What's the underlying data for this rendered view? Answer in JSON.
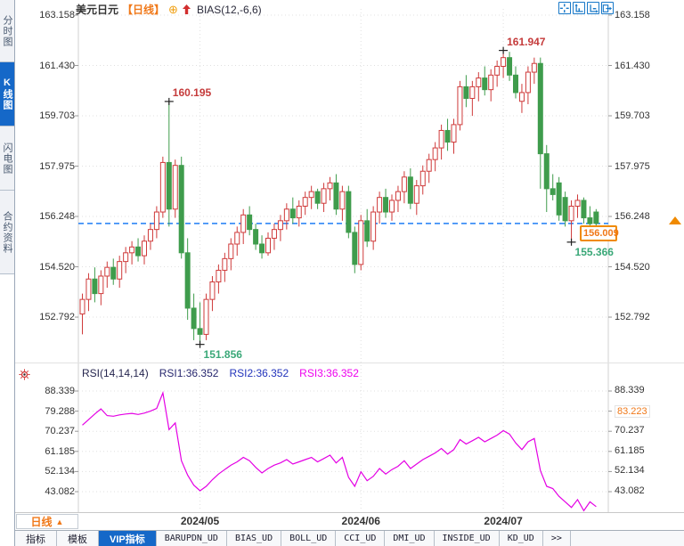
{
  "header": {
    "symbol": "美元日元",
    "period_tag": "【日线】",
    "plus_icon": "⊕",
    "indicator": "BIAS(12,-6,6)"
  },
  "toolbar_icons": [
    {
      "name": "pan-crosshair-icon"
    },
    {
      "name": "zoom-y-axis-icon"
    },
    {
      "name": "zoom-x-axis-icon"
    },
    {
      "name": "pop-out-icon"
    }
  ],
  "sidebar": {
    "items": [
      {
        "label": "分时图",
        "active": false
      },
      {
        "label": "K线图",
        "active": true
      },
      {
        "label": "闪电图",
        "active": false
      },
      {
        "label": "合约资料",
        "active": false
      }
    ]
  },
  "price_panel": {
    "axis_values": [
      "163.158",
      "161.430",
      "159.703",
      "157.975",
      "156.248",
      "154.520",
      "152.792"
    ],
    "current_price_label": "156.009"
  },
  "rsi_panel": {
    "title": "RSI(14,14,14)",
    "rsi1_label": "RSI1:36.352",
    "rsi2_label": "RSI2:36.352",
    "rsi3_label": "RSI3:36.352",
    "axis_left": [
      "88.339",
      "79.288",
      "70.237",
      "61.185",
      "52.134",
      "43.082"
    ],
    "axis_right": [
      {
        "text": "88.339",
        "highlight": false
      },
      {
        "text": "83.223",
        "highlight": true
      },
      {
        "text": "70.237",
        "highlight": false
      },
      {
        "text": "61.185",
        "highlight": false
      },
      {
        "text": "52.134",
        "highlight": false
      },
      {
        "text": "43.082",
        "highlight": false
      }
    ]
  },
  "xaxis": {
    "period_label": "日线",
    "period_arrow": "▲"
  },
  "tabbar": {
    "tabs": [
      {
        "label": "指标",
        "active": false,
        "mono": false
      },
      {
        "label": "模板",
        "active": false,
        "mono": false
      },
      {
        "label": "VIP指标",
        "active": true,
        "mono": false
      },
      {
        "label": "BARUPDN_UD",
        "active": false,
        "mono": true
      },
      {
        "label": "BIAS_UD",
        "active": false,
        "mono": true
      },
      {
        "label": "BOLL_UD",
        "active": false,
        "mono": true
      },
      {
        "label": "CCI_UD",
        "active": false,
        "mono": true
      },
      {
        "label": "DMI_UD",
        "active": false,
        "mono": true
      },
      {
        "label": "INSIDE_UD",
        "active": false,
        "mono": true
      },
      {
        "label": "KD_UD",
        "active": false,
        "mono": true
      },
      {
        "label": "&gt;&gt;",
        "plain": ">>",
        "active": false,
        "mono": true
      }
    ]
  },
  "colors": {
    "up": "#cf3a3a",
    "down": "#3f9c4c",
    "rsi_line": "#e400e4",
    "dashed_line": "#1f7df5",
    "grid": "#e0e0e0",
    "annotation_high": "#c53b3b",
    "annotation_low": "#3aa878",
    "accent_orange": "#f07818",
    "accent_blue": "#1568c8",
    "cross": "#222222"
  },
  "chart_data": [
    {
      "type": "candlestick",
      "title": "美元日元 日线 (USD/JPY daily)",
      "y_ticks": [
        163.158,
        161.43,
        159.703,
        157.975,
        156.248,
        154.52,
        152.792
      ],
      "x_ticks": [
        {
          "label": "2024/05",
          "index": 19
        },
        {
          "label": "2024/06",
          "index": 45
        },
        {
          "label": "2024/07",
          "index": 68
        }
      ],
      "current_price": 156.009,
      "annotations": [
        {
          "text": "160.195",
          "price": 160.195,
          "index": 14,
          "side": "high"
        },
        {
          "text": "161.947",
          "price": 161.947,
          "index": 68,
          "side": "high"
        },
        {
          "text": "151.856",
          "price": 151.856,
          "index": 19,
          "side": "low"
        },
        {
          "text": "155.366",
          "price": 155.366,
          "index": 79,
          "side": "low"
        }
      ],
      "ohlc": [
        [
          152.9,
          153.6,
          152.2,
          153.4
        ],
        [
          153.4,
          154.3,
          153.0,
          154.1
        ],
        [
          154.1,
          154.5,
          153.3,
          153.6
        ],
        [
          153.6,
          154.4,
          153.2,
          154.2
        ],
        [
          154.2,
          154.7,
          153.8,
          154.5
        ],
        [
          154.5,
          154.8,
          153.9,
          154.1
        ],
        [
          154.1,
          154.9,
          153.8,
          154.7
        ],
        [
          154.7,
          155.2,
          154.3,
          155.0
        ],
        [
          155.0,
          155.4,
          154.6,
          155.2
        ],
        [
          155.2,
          155.5,
          154.7,
          154.9
        ],
        [
          154.9,
          155.6,
          154.6,
          155.4
        ],
        [
          155.4,
          156.0,
          155.1,
          155.8
        ],
        [
          155.8,
          156.6,
          155.5,
          156.4
        ],
        [
          156.4,
          158.3,
          156.2,
          158.1
        ],
        [
          158.1,
          160.195,
          155.9,
          156.5
        ],
        [
          156.5,
          158.2,
          156.2,
          158.0
        ],
        [
          158.0,
          158.3,
          154.8,
          155.0
        ],
        [
          155.0,
          155.5,
          152.7,
          153.1
        ],
        [
          153.1,
          153.6,
          152.0,
          152.4
        ],
        [
          152.4,
          153.3,
          151.856,
          152.2
        ],
        [
          152.2,
          153.6,
          152.0,
          153.4
        ],
        [
          153.4,
          154.2,
          153.0,
          154.0
        ],
        [
          154.0,
          154.6,
          153.6,
          154.4
        ],
        [
          154.4,
          155.0,
          154.0,
          154.8
        ],
        [
          154.8,
          155.5,
          154.4,
          155.3
        ],
        [
          155.3,
          155.9,
          154.9,
          155.7
        ],
        [
          155.7,
          156.5,
          155.3,
          156.3
        ],
        [
          156.3,
          156.6,
          155.6,
          155.8
        ],
        [
          155.8,
          156.0,
          155.1,
          155.3
        ],
        [
          155.3,
          155.6,
          154.8,
          155.0
        ],
        [
          155.0,
          155.7,
          154.9,
          155.5
        ],
        [
          155.5,
          156.0,
          155.1,
          155.8
        ],
        [
          155.8,
          156.3,
          155.4,
          156.1
        ],
        [
          156.1,
          156.7,
          155.8,
          156.5
        ],
        [
          156.5,
          156.9,
          156.0,
          156.2
        ],
        [
          156.2,
          156.8,
          155.9,
          156.6
        ],
        [
          156.6,
          157.1,
          156.3,
          156.9
        ],
        [
          156.9,
          157.3,
          156.5,
          157.1
        ],
        [
          157.1,
          157.2,
          156.5,
          156.7
        ],
        [
          156.7,
          157.4,
          156.4,
          157.2
        ],
        [
          157.2,
          157.6,
          156.8,
          157.4
        ],
        [
          157.4,
          157.7,
          156.3,
          156.5
        ],
        [
          156.5,
          157.3,
          156.1,
          157.1
        ],
        [
          157.1,
          157.3,
          155.5,
          155.7
        ],
        [
          155.7,
          155.9,
          154.3,
          154.6
        ],
        [
          154.6,
          156.3,
          154.4,
          156.1
        ],
        [
          156.1,
          156.5,
          155.2,
          155.4
        ],
        [
          155.4,
          156.6,
          155.1,
          156.4
        ],
        [
          156.4,
          157.1,
          156.0,
          156.9
        ],
        [
          156.9,
          157.2,
          156.2,
          156.4
        ],
        [
          156.4,
          157.0,
          156.1,
          156.8
        ],
        [
          156.8,
          157.3,
          156.4,
          157.1
        ],
        [
          157.1,
          157.8,
          156.7,
          157.6
        ],
        [
          157.6,
          157.9,
          156.5,
          156.7
        ],
        [
          156.7,
          157.5,
          156.3,
          157.3
        ],
        [
          157.3,
          158.0,
          157.0,
          157.8
        ],
        [
          157.8,
          158.4,
          157.4,
          158.2
        ],
        [
          158.2,
          158.8,
          157.8,
          158.6
        ],
        [
          158.6,
          159.4,
          158.2,
          159.2
        ],
        [
          159.2,
          159.6,
          158.5,
          158.8
        ],
        [
          158.8,
          159.6,
          158.4,
          159.4
        ],
        [
          159.4,
          160.9,
          159.2,
          160.7
        ],
        [
          160.7,
          161.1,
          160.0,
          160.3
        ],
        [
          160.3,
          160.9,
          159.7,
          160.7
        ],
        [
          160.7,
          161.2,
          160.2,
          161.0
        ],
        [
          161.0,
          161.4,
          160.4,
          160.6
        ],
        [
          160.6,
          161.3,
          160.2,
          161.1
        ],
        [
          161.1,
          161.6,
          160.7,
          161.4
        ],
        [
          161.4,
          161.947,
          161.0,
          161.7
        ],
        [
          161.7,
          161.9,
          160.9,
          161.1
        ],
        [
          161.1,
          161.4,
          160.3,
          160.5
        ],
        [
          160.2,
          160.8,
          159.8,
          160.5
        ],
        [
          160.5,
          161.4,
          160.1,
          161.2
        ],
        [
          161.2,
          161.7,
          160.8,
          161.5
        ],
        [
          161.5,
          161.7,
          157.2,
          158.4
        ],
        [
          158.4,
          158.7,
          156.4,
          157.2
        ],
        [
          157.2,
          157.7,
          156.8,
          157.0
        ],
        [
          157.4,
          157.6,
          156.1,
          156.3
        ],
        [
          156.9,
          157.1,
          155.9,
          156.1
        ],
        [
          156.1,
          156.8,
          155.366,
          156.6
        ],
        [
          156.6,
          157.0,
          156.2,
          156.8
        ],
        [
          156.8,
          156.9,
          156.0,
          156.2
        ],
        [
          156.2,
          156.6,
          155.9,
          156.0
        ],
        [
          156.4,
          156.5,
          155.7,
          156.009
        ]
      ]
    },
    {
      "type": "line",
      "title": "RSI(14,14,14)",
      "legend": [
        "RSI1:36.352",
        "RSI2:36.352",
        "RSI3:36.352"
      ],
      "y_ticks": [
        88.339,
        79.288,
        70.237,
        61.185,
        52.134,
        43.082
      ],
      "right_highlight_value": 83.223,
      "last_value": 36.352,
      "series": [
        {
          "name": "RSI3",
          "values": [
            73.0,
            75.5,
            78.0,
            80.3,
            77.3,
            77.0,
            77.6,
            78.0,
            78.3,
            77.8,
            78.4,
            79.3,
            80.5,
            87.5,
            71.0,
            74.0,
            57.0,
            50.5,
            46.0,
            43.5,
            45.5,
            48.5,
            51.0,
            53.0,
            55.0,
            56.5,
            58.5,
            57.0,
            54.0,
            51.5,
            53.5,
            55.0,
            56.0,
            57.5,
            55.5,
            56.5,
            57.5,
            58.5,
            56.5,
            58.0,
            59.5,
            56.0,
            58.5,
            49.5,
            45.5,
            52.0,
            48.0,
            50.0,
            53.5,
            51.0,
            53.0,
            54.5,
            57.0,
            53.5,
            55.5,
            57.5,
            59.0,
            60.5,
            62.5,
            60.0,
            62.0,
            66.5,
            64.5,
            66.0,
            67.5,
            65.5,
            67.0,
            68.5,
            70.5,
            69.0,
            65.0,
            62.0,
            65.5,
            67.0,
            52.5,
            45.5,
            44.5,
            41.0,
            38.5,
            36.0,
            39.5,
            34.5,
            38.5,
            36.352
          ]
        }
      ]
    }
  ]
}
